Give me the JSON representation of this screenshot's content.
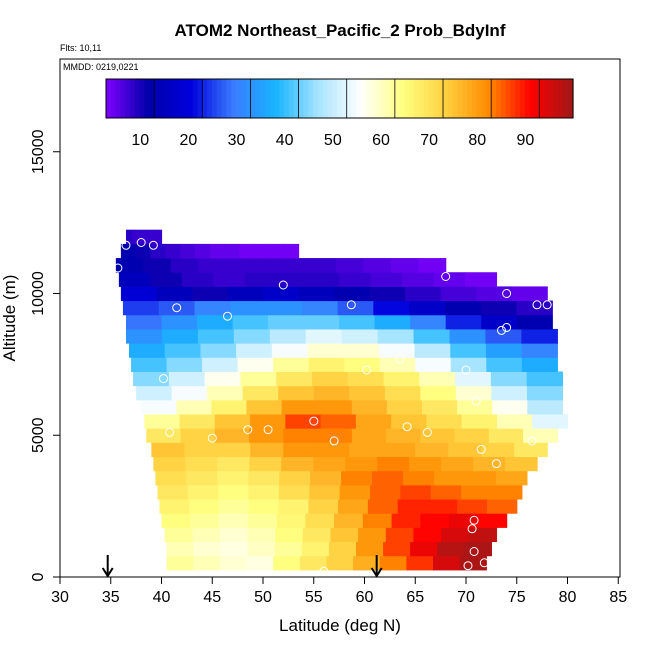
{
  "chart_data": {
    "type": "heatmap",
    "title": "ATOM2 Northeast_Pacific_2 Prob_BdyInf",
    "flights_label": "Flts: 10,11",
    "mmdd_label": "MMDD: 0219,0221",
    "xlabel": "Latitude (deg N)",
    "ylabel": "Altitude (m)",
    "xlim": [
      30,
      85
    ],
    "ylim": [
      0,
      17000
    ],
    "xticks": [
      30,
      35,
      40,
      45,
      50,
      55,
      60,
      65,
      70,
      75,
      80,
      85
    ],
    "yticks": [
      0,
      5000,
      10000,
      15000
    ],
    "colorbar": {
      "range": [
        0,
        97
      ],
      "ticks": [
        10,
        20,
        30,
        40,
        50,
        60,
        70,
        80,
        90
      ],
      "stops": [
        "#8000ff",
        "#0000aa",
        "#0000dd",
        "#3a7bff",
        "#18b4ff",
        "#a8e4ff",
        "#ffffff",
        "#ffff80",
        "#ffd040",
        "#ff8c00",
        "#ff0000",
        "#a01818"
      ]
    },
    "altitude_bands_m": [
      {
        "alt": 500,
        "lat": [
          40.5,
          72
        ],
        "values": [
          60,
          58,
          56,
          55,
          62,
          66,
          70,
          75,
          80,
          85,
          92,
          96
        ]
      },
      {
        "alt": 1000,
        "lat": [
          40.5,
          72.5
        ],
        "values": [
          58,
          56,
          55,
          57,
          60,
          64,
          70,
          78,
          84,
          90,
          95,
          96
        ]
      },
      {
        "alt": 1500,
        "lat": [
          40.3,
          73
        ],
        "values": [
          60,
          58,
          56,
          58,
          62,
          66,
          72,
          78,
          84,
          88,
          92,
          94
        ]
      },
      {
        "alt": 2000,
        "lat": [
          40,
          74
        ],
        "values": [
          62,
          60,
          58,
          60,
          63,
          68,
          74,
          80,
          86,
          88,
          90,
          88
        ]
      },
      {
        "alt": 2500,
        "lat": [
          39.8,
          75
        ],
        "values": [
          64,
          62,
          60,
          62,
          64,
          70,
          76,
          82,
          86,
          86,
          84,
          82
        ]
      },
      {
        "alt": 3000,
        "lat": [
          39.6,
          75.5
        ],
        "values": [
          66,
          64,
          62,
          64,
          68,
          72,
          78,
          82,
          84,
          82,
          80,
          80
        ]
      },
      {
        "alt": 3500,
        "lat": [
          39.4,
          76
        ],
        "values": [
          68,
          66,
          64,
          66,
          70,
          74,
          80,
          82,
          80,
          78,
          78,
          76
        ]
      },
      {
        "alt": 4000,
        "lat": [
          39.2,
          77
        ],
        "values": [
          70,
          68,
          66,
          70,
          74,
          76,
          78,
          80,
          78,
          76,
          74,
          72
        ]
      },
      {
        "alt": 4500,
        "lat": [
          39,
          78
        ],
        "values": [
          72,
          70,
          70,
          74,
          78,
          78,
          76,
          76,
          74,
          72,
          70,
          66
        ]
      },
      {
        "alt": 5000,
        "lat": [
          38.5,
          79
        ],
        "values": [
          66,
          70,
          74,
          78,
          80,
          80,
          76,
          74,
          72,
          70,
          66,
          58
        ]
      },
      {
        "alt": 5500,
        "lat": [
          38.3,
          80
        ],
        "values": [
          60,
          66,
          72,
          78,
          84,
          82,
          76,
          72,
          68,
          64,
          58,
          50
        ]
      },
      {
        "alt": 6000,
        "lat": [
          38,
          79.5
        ],
        "values": [
          52,
          58,
          64,
          72,
          78,
          78,
          74,
          70,
          66,
          60,
          54,
          46
        ]
      },
      {
        "alt": 6500,
        "lat": [
          37.5,
          79.5
        ],
        "values": [
          48,
          52,
          58,
          66,
          72,
          74,
          72,
          68,
          62,
          56,
          48,
          42
        ]
      },
      {
        "alt": 7000,
        "lat": [
          37.2,
          79.5
        ],
        "values": [
          42,
          48,
          54,
          60,
          66,
          70,
          68,
          64,
          58,
          50,
          42,
          38
        ]
      },
      {
        "alt": 7500,
        "lat": [
          37,
          79
        ],
        "values": [
          38,
          42,
          48,
          54,
          60,
          64,
          62,
          58,
          52,
          44,
          38,
          34
        ]
      },
      {
        "alt": 8000,
        "lat": [
          36.8,
          79
        ],
        "values": [
          34,
          38,
          42,
          48,
          52,
          56,
          56,
          52,
          46,
          38,
          32,
          28
        ]
      },
      {
        "alt": 8500,
        "lat": [
          36.5,
          79
        ],
        "values": [
          30,
          34,
          38,
          42,
          46,
          50,
          48,
          44,
          38,
          30,
          24,
          20
        ]
      },
      {
        "alt": 9000,
        "lat": [
          36.5,
          78.5
        ],
        "values": [
          26,
          30,
          34,
          38,
          40,
          40,
          38,
          34,
          28,
          20,
          14,
          10
        ]
      },
      {
        "alt": 9500,
        "lat": [
          36.2,
          78.5
        ],
        "values": [
          22,
          24,
          28,
          30,
          30,
          28,
          24,
          18,
          14,
          10,
          8,
          6
        ]
      },
      {
        "alt": 10000,
        "lat": [
          36,
          78
        ],
        "values": [
          16,
          12,
          8,
          12,
          14,
          12,
          10,
          8,
          6,
          4,
          3,
          2
        ]
      },
      {
        "alt": 10500,
        "lat": [
          35.8,
          73
        ],
        "values": [
          12,
          8,
          6,
          5,
          6,
          6,
          6,
          5,
          4,
          3,
          2,
          1
        ]
      },
      {
        "alt": 11000,
        "lat": [
          35.5,
          68
        ],
        "values": [
          10,
          8,
          6,
          5,
          5,
          5,
          5,
          5,
          4,
          3,
          2,
          1
        ]
      },
      {
        "alt": 11500,
        "lat": [
          36,
          53.5
        ],
        "values": [
          10,
          8,
          6,
          5,
          4,
          3,
          2,
          2,
          1,
          1,
          1,
          1
        ]
      },
      {
        "alt": 12000,
        "lat": [
          36.5,
          40
        ],
        "values": [
          6,
          6,
          5,
          5,
          5,
          5,
          5,
          5,
          5,
          5,
          5,
          5
        ]
      }
    ],
    "observation_points": [
      {
        "lat": 36.5,
        "alt": 11700
      },
      {
        "lat": 38,
        "alt": 11800
      },
      {
        "lat": 39.2,
        "alt": 11700
      },
      {
        "lat": 35.7,
        "alt": 10900
      },
      {
        "lat": 52,
        "alt": 10300
      },
      {
        "lat": 68,
        "alt": 10600
      },
      {
        "lat": 74,
        "alt": 10000
      },
      {
        "lat": 77,
        "alt": 9600
      },
      {
        "lat": 78,
        "alt": 9600
      },
      {
        "lat": 58.7,
        "alt": 9600
      },
      {
        "lat": 41.5,
        "alt": 9500
      },
      {
        "lat": 46.5,
        "alt": 9200
      },
      {
        "lat": 73.5,
        "alt": 8700
      },
      {
        "lat": 74,
        "alt": 8800
      },
      {
        "lat": 63.5,
        "alt": 7700
      },
      {
        "lat": 60.2,
        "alt": 7300
      },
      {
        "lat": 70,
        "alt": 7300
      },
      {
        "lat": 40.2,
        "alt": 7000
      },
      {
        "lat": 71,
        "alt": 6200
      },
      {
        "lat": 73.8,
        "alt": 6000
      },
      {
        "lat": 80,
        "alt": 5900
      },
      {
        "lat": 55,
        "alt": 5500
      },
      {
        "lat": 64.2,
        "alt": 5300
      },
      {
        "lat": 48.5,
        "alt": 5200
      },
      {
        "lat": 50.5,
        "alt": 5200
      },
      {
        "lat": 66.2,
        "alt": 5100
      },
      {
        "lat": 40.8,
        "alt": 5100
      },
      {
        "lat": 45,
        "alt": 4900
      },
      {
        "lat": 57,
        "alt": 4800
      },
      {
        "lat": 76.5,
        "alt": 4800
      },
      {
        "lat": 71.5,
        "alt": 4500
      },
      {
        "lat": 73,
        "alt": 4000
      },
      {
        "lat": 70.8,
        "alt": 2000
      },
      {
        "lat": 70.6,
        "alt": 1700
      },
      {
        "lat": 70.8,
        "alt": 900
      },
      {
        "lat": 71.8,
        "alt": 500
      },
      {
        "lat": 70.2,
        "alt": 400
      },
      {
        "lat": 56,
        "alt": 200
      }
    ],
    "arrows_lat": [
      34.7,
      61.2
    ],
    "legend": "top"
  }
}
